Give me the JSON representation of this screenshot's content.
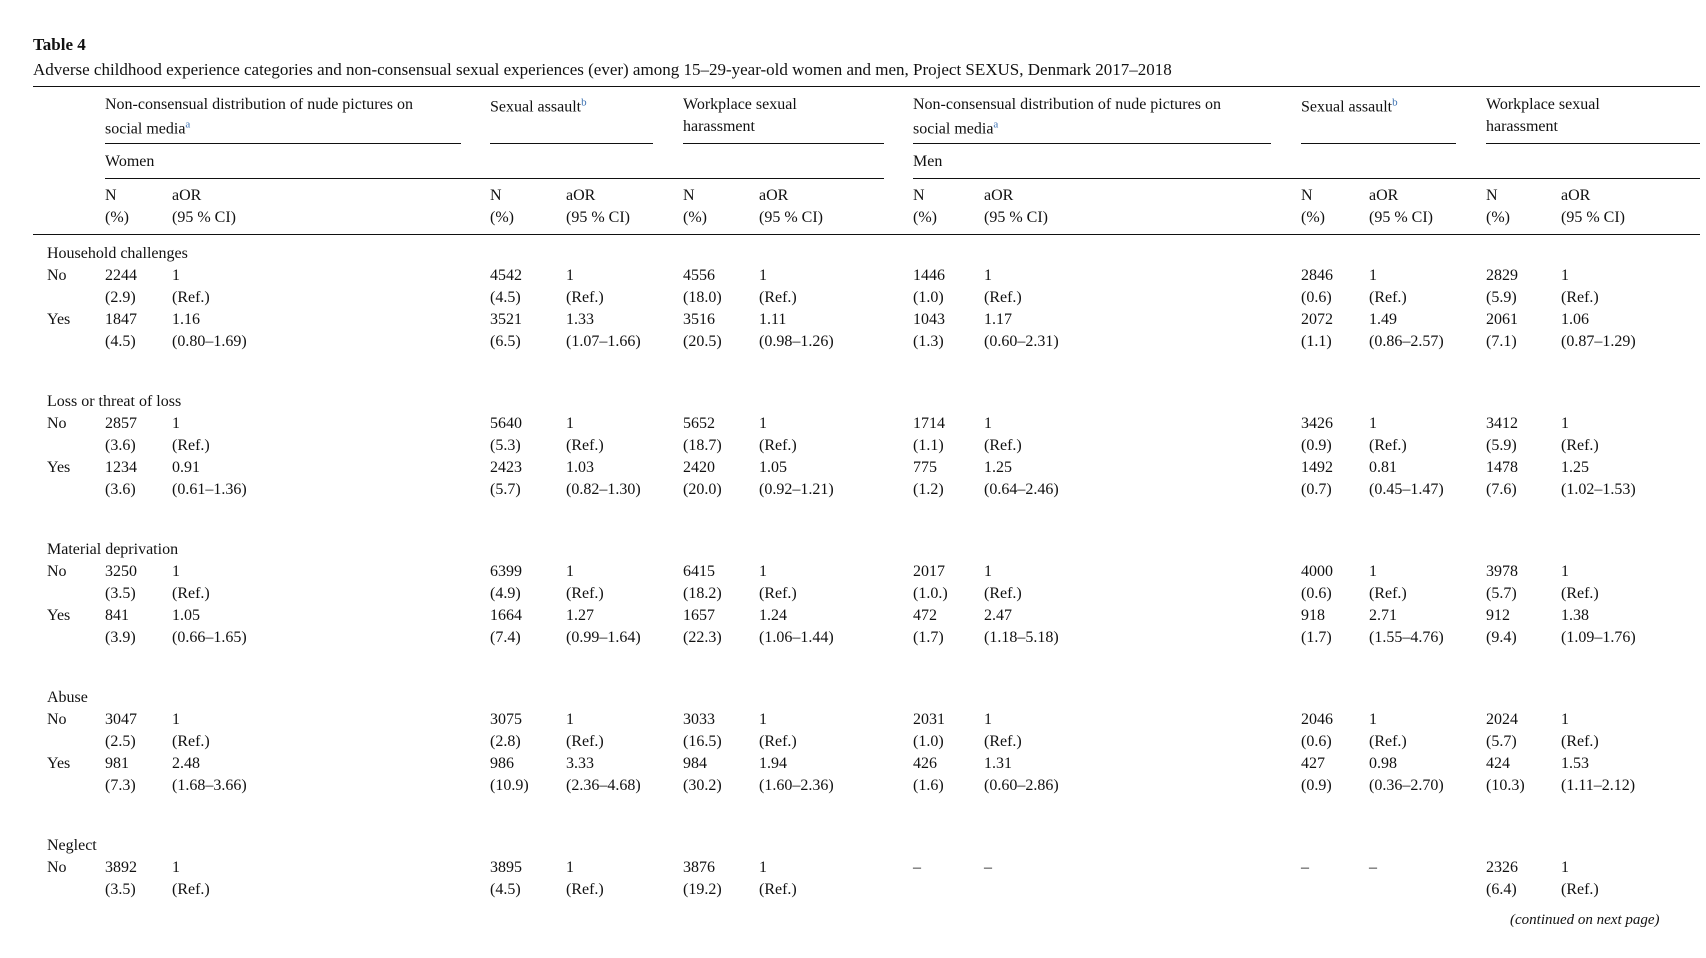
{
  "table": {
    "label": "Table 4",
    "caption": "Adverse childhood experience categories and non-consensual sexual experiences (ever) among 15–29-year-old women and men, Project SEXUS, Denmark 2017–2018",
    "column_groups": [
      {
        "title": [
          "Non-consensual distribution of nude pictures on",
          "social media"
        ],
        "note": "a"
      },
      {
        "title": [
          "Sexual assault"
        ],
        "note": "b"
      },
      {
        "title": [
          "Workplace sexual",
          "harassment"
        ]
      },
      {
        "title": [
          "Non-consensual distribution of nude pictures on",
          "social media"
        ],
        "note": "a"
      },
      {
        "title": [
          "Sexual assault"
        ],
        "note": "b"
      },
      {
        "title": [
          "Workplace sexual",
          "harassment"
        ]
      }
    ],
    "sex_labels": [
      "Women",
      "Men"
    ],
    "sub_headers": {
      "n": "N",
      "pct": "(%)",
      "aor": "aOR",
      "ci": "(95 % CI)"
    },
    "sections": [
      {
        "title": "Household challenges",
        "rows": [
          {
            "label": "No",
            "cells": [
              [
                "2244",
                "1",
                "(2.9)",
                "(Ref.)"
              ],
              [
                "4542",
                "1",
                "(4.5)",
                "(Ref.)"
              ],
              [
                "4556",
                "1",
                "(18.0)",
                "(Ref.)"
              ],
              [
                "1446",
                "1",
                "(1.0)",
                "(Ref.)"
              ],
              [
                "2846",
                "1",
                "(0.6)",
                "(Ref.)"
              ],
              [
                "2829",
                "1",
                "(5.9)",
                "(Ref.)"
              ]
            ]
          },
          {
            "label": "Yes",
            "cells": [
              [
                "1847",
                "1.16",
                "(4.5)",
                "(0.80–1.69)"
              ],
              [
                "3521",
                "1.33",
                "(6.5)",
                "(1.07–1.66)"
              ],
              [
                "3516",
                "1.11",
                "(20.5)",
                "(0.98–1.26)"
              ],
              [
                "1043",
                "1.17",
                "(1.3)",
                "(0.60–2.31)"
              ],
              [
                "2072",
                "1.49",
                "(1.1)",
                "(0.86–2.57)"
              ],
              [
                "2061",
                "1.06",
                "(7.1)",
                "(0.87–1.29)"
              ]
            ]
          }
        ]
      },
      {
        "title": "Loss or threat of loss",
        "rows": [
          {
            "label": "No",
            "cells": [
              [
                "2857",
                "1",
                "(3.6)",
                "(Ref.)"
              ],
              [
                "5640",
                "1",
                "(5.3)",
                "(Ref.)"
              ],
              [
                "5652",
                "1",
                "(18.7)",
                "(Ref.)"
              ],
              [
                "1714",
                "1",
                "(1.1)",
                "(Ref.)"
              ],
              [
                "3426",
                "1",
                "(0.9)",
                "(Ref.)"
              ],
              [
                "3412",
                "1",
                "(5.9)",
                "(Ref.)"
              ]
            ]
          },
          {
            "label": "Yes",
            "cells": [
              [
                "1234",
                "0.91",
                "(3.6)",
                "(0.61–1.36)"
              ],
              [
                "2423",
                "1.03",
                "(5.7)",
                "(0.82–1.30)"
              ],
              [
                "2420",
                "1.05",
                "(20.0)",
                "(0.92–1.21)"
              ],
              [
                "775",
                "1.25",
                "(1.2)",
                "(0.64–2.46)"
              ],
              [
                "1492",
                "0.81",
                "(0.7)",
                "(0.45–1.47)"
              ],
              [
                "1478",
                "1.25",
                "(7.6)",
                "(1.02–1.53)"
              ]
            ]
          }
        ]
      },
      {
        "title": "Material deprivation",
        "rows": [
          {
            "label": "No",
            "cells": [
              [
                "3250",
                "1",
                "(3.5)",
                "(Ref.)"
              ],
              [
                "6399",
                "1",
                "(4.9)",
                "(Ref.)"
              ],
              [
                "6415",
                "1",
                "(18.2)",
                "(Ref.)"
              ],
              [
                "2017",
                "1",
                "(1.0.)",
                "(Ref.)"
              ],
              [
                "4000",
                "1",
                "(0.6)",
                "(Ref.)"
              ],
              [
                "3978",
                "1",
                "(5.7)",
                "(Ref.)"
              ]
            ]
          },
          {
            "label": "Yes",
            "cells": [
              [
                "841",
                "1.05",
                "(3.9)",
                "(0.66–1.65)"
              ],
              [
                "1664",
                "1.27",
                "(7.4)",
                "(0.99–1.64)"
              ],
              [
                "1657",
                "1.24",
                "(22.3)",
                "(1.06–1.44)"
              ],
              [
                "472",
                "2.47",
                "(1.7)",
                "(1.18–5.18)"
              ],
              [
                "918",
                "2.71",
                "(1.7)",
                "(1.55–4.76)"
              ],
              [
                "912",
                "1.38",
                "(9.4)",
                "(1.09–1.76)"
              ]
            ]
          }
        ]
      },
      {
        "title": "Abuse",
        "rows": [
          {
            "label": "No",
            "cells": [
              [
                "3047",
                "1",
                "(2.5)",
                "(Ref.)"
              ],
              [
                "3075",
                "1",
                "(2.8)",
                "(Ref.)"
              ],
              [
                "3033",
                "1",
                "(16.5)",
                "(Ref.)"
              ],
              [
                "2031",
                "1",
                "(1.0)",
                "(Ref.)"
              ],
              [
                "2046",
                "1",
                "(0.6)",
                "(Ref.)"
              ],
              [
                "2024",
                "1",
                "(5.7)",
                "(Ref.)"
              ]
            ]
          },
          {
            "label": "Yes",
            "cells": [
              [
                "981",
                "2.48",
                "(7.3)",
                "(1.68–3.66)"
              ],
              [
                "986",
                "3.33",
                "(10.9)",
                "(2.36–4.68)"
              ],
              [
                "984",
                "1.94",
                "(30.2)",
                "(1.60–2.36)"
              ],
              [
                "426",
                "1.31",
                "(1.6)",
                "(0.60–2.86)"
              ],
              [
                "427",
                "0.98",
                "(0.9)",
                "(0.36–2.70)"
              ],
              [
                "424",
                "1.53",
                "(10.3)",
                "(1.11–2.12)"
              ]
            ]
          }
        ]
      },
      {
        "title": "Neglect",
        "rows": [
          {
            "label": "No",
            "cells": [
              [
                "3892",
                "1",
                "(3.5)",
                "(Ref.)"
              ],
              [
                "3895",
                "1",
                "(4.5)",
                "(Ref.)"
              ],
              [
                "3876",
                "1",
                "(19.2)",
                "(Ref.)"
              ],
              [
                "–",
                "–"
              ],
              [
                "–",
                "–"
              ],
              [
                "2326",
                "1",
                "(6.4)",
                "(Ref.)"
              ]
            ]
          }
        ]
      }
    ],
    "footer": "(continued on next page)"
  }
}
